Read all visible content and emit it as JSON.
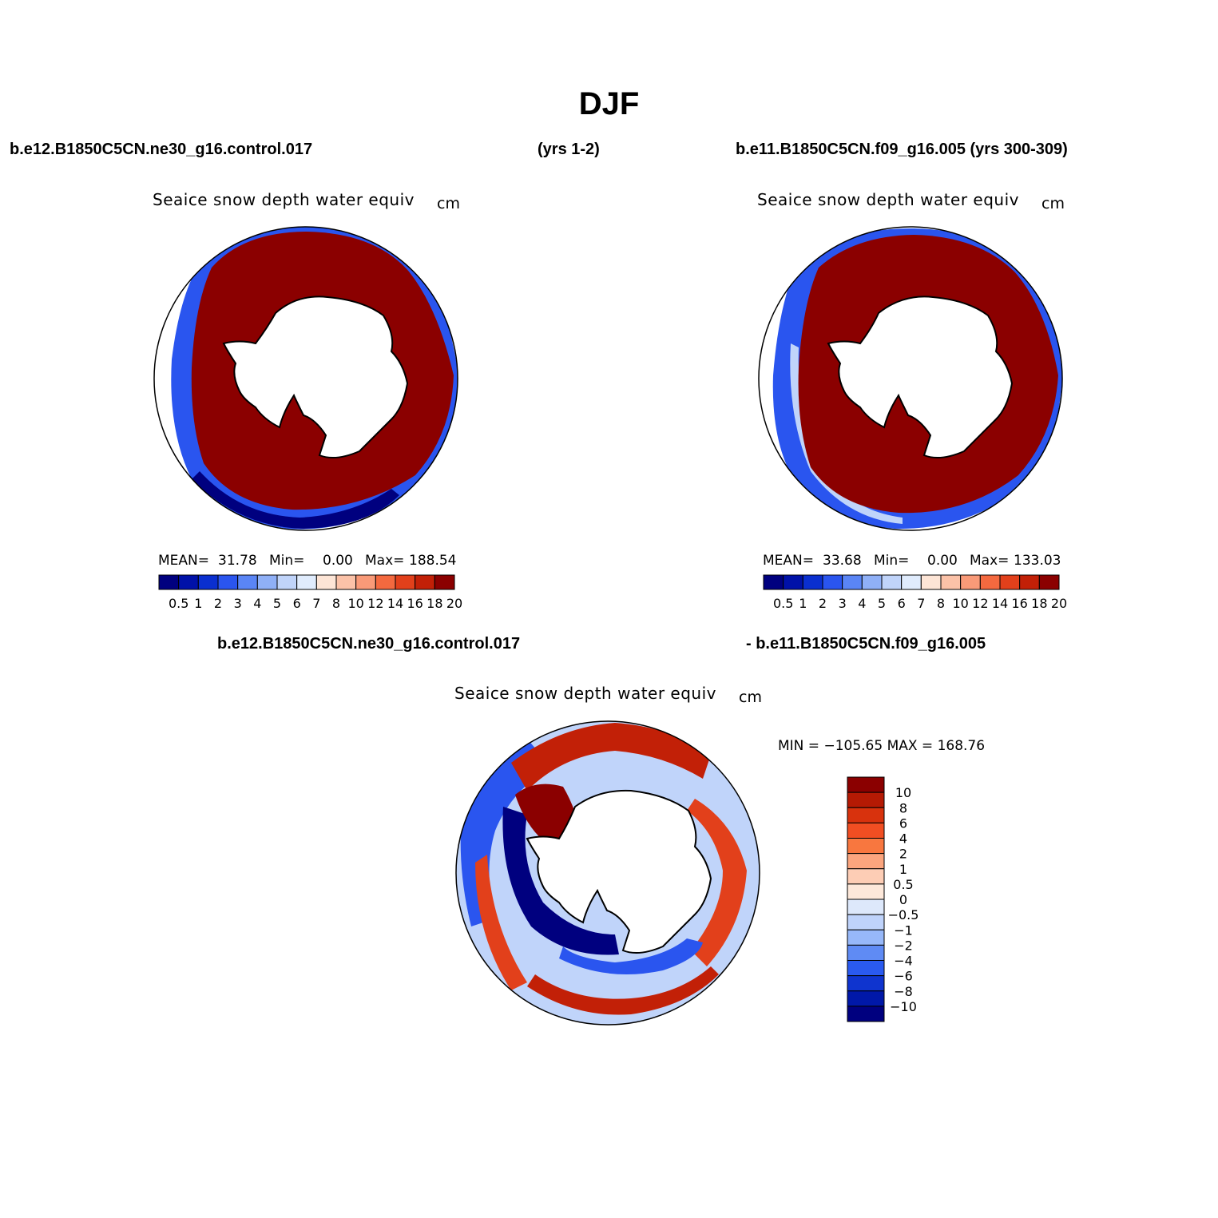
{
  "title": "DJF",
  "headers": {
    "top_left_case": "b.e12.B1850C5CN.ne30_g16.control.017",
    "top_years": "(yrs 1-2)",
    "top_right_case": "b.e11.B1850C5CN.f09_g16.005 (yrs 300-309)",
    "diff_case_a": "b.e12.B1850C5CN.ne30_g16.control.017",
    "diff_case_b": "- b.e11.B1850C5CN.f09_g16.005"
  },
  "panels": {
    "left": {
      "variable": "Seaice snow depth water equiv",
      "units": "cm",
      "mean_label": "MEAN=",
      "mean": "31.78",
      "min_label": "Min=",
      "min": "0.00",
      "max_label": "Max=",
      "max": "188.54"
    },
    "right": {
      "variable": "Seaice snow depth water equiv",
      "units": "cm",
      "mean_label": "MEAN=",
      "mean": "33.68",
      "min_label": "Min=",
      "min": "0.00",
      "max_label": "Max=",
      "max": "133.03"
    },
    "diff": {
      "variable": "Seaice snow depth water equiv",
      "units": "cm",
      "minmax": "MIN = −105.65 MAX = 168.76"
    }
  },
  "colorbar_abs": {
    "labels": [
      "0.5",
      "1",
      "2",
      "3",
      "4",
      "5",
      "6",
      "7",
      "8",
      "10",
      "12",
      "14",
      "16",
      "18",
      "20"
    ],
    "colors": [
      "#00007f",
      "#0011a8",
      "#0a2fd0",
      "#2a55ef",
      "#5a85f5",
      "#8fb0f7",
      "#c0d4fa",
      "#e0ecfd",
      "#fde5d6",
      "#fbc2a8",
      "#f99a78",
      "#f4693f",
      "#e2401b",
      "#c22007",
      "#8b0000"
    ]
  },
  "colorbar_diff": {
    "labels": [
      "10",
      "8",
      "6",
      "4",
      "2",
      "1",
      "0.5",
      "0",
      "−0.5",
      "−1",
      "−2",
      "−4",
      "−6",
      "−8",
      "−10"
    ],
    "colors": [
      "#8b0000",
      "#b51a04",
      "#d8320d",
      "#f14e22",
      "#f8773f",
      "#fba57e",
      "#fdcdb5",
      "#fde8da",
      "#dde8fb",
      "#bfd3fb",
      "#97b8f9",
      "#5f8bf4",
      "#2a5af0",
      "#0f34cf",
      "#0018a8",
      "#00007f"
    ]
  },
  "map_colors": {
    "saturated_red": "#8b0000",
    "deep_blue": "#00007f",
    "mid_blue": "#2a55ef",
    "pale_blue": "#c0d4fa",
    "orange_red": "#e2401b",
    "white": "#ffffff",
    "coast": "#000000"
  }
}
